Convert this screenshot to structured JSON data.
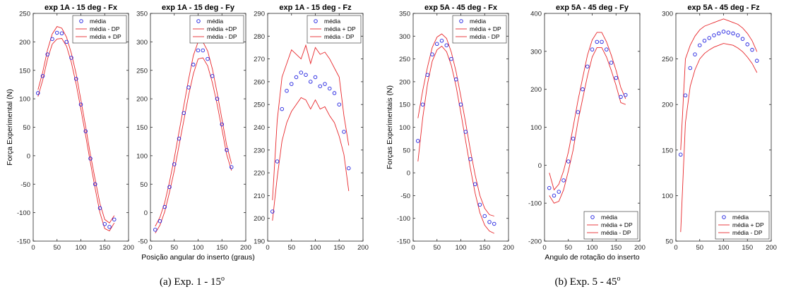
{
  "captions": [
    {
      "label": "(a) Exp. 1 - 15",
      "sup": "o"
    },
    {
      "label": "(b) Exp. 5 - 45",
      "sup": "o"
    }
  ],
  "colors": {
    "marker": "#1f1fe0",
    "line": "#e8272b",
    "axis": "#262626"
  },
  "chart_data": [
    {
      "type": "scatter",
      "title": "exp 1A - 15 deg - Fx",
      "xlabel": "",
      "ylabel": "Força Experimental (N)",
      "xlim": [
        0,
        200
      ],
      "ylim": [
        -150,
        250
      ],
      "xticks": [
        0,
        50,
        100,
        150,
        200
      ],
      "yticks": [
        -150,
        -100,
        -50,
        0,
        50,
        100,
        150,
        200,
        250
      ],
      "legend": {
        "position": "top-right",
        "entries": [
          "média",
          "média - DP",
          "média + DP"
        ]
      },
      "x": [
        10,
        20,
        30,
        40,
        50,
        60,
        70,
        80,
        90,
        100,
        110,
        120,
        130,
        140,
        150,
        160,
        170
      ],
      "series": [
        {
          "name": "média",
          "kind": "markers",
          "values": [
            110,
            140,
            178,
            205,
            216,
            215,
            200,
            172,
            135,
            90,
            43,
            -5,
            -50,
            -92,
            -120,
            -125,
            -112
          ]
        },
        {
          "name": "média - DP",
          "kind": "line",
          "values": [
            104,
            133,
            170,
            196,
            205,
            206,
            192,
            164,
            126,
            82,
            35,
            -12,
            -58,
            -100,
            -128,
            -132,
            -118
          ]
        },
        {
          "name": "média + DP",
          "kind": "line",
          "values": [
            116,
            147,
            186,
            214,
            227,
            224,
            208,
            180,
            144,
            98,
            51,
            2,
            -42,
            -84,
            -112,
            -118,
            -105
          ]
        }
      ]
    },
    {
      "type": "scatter",
      "title": "exp 1A - 15 deg - Fy",
      "xlabel": "Posição angular do inserto (graus)",
      "ylabel": "",
      "xlim": [
        0,
        200
      ],
      "ylim": [
        -50,
        350
      ],
      "xticks": [
        0,
        50,
        100,
        150,
        200
      ],
      "yticks": [
        -50,
        0,
        50,
        100,
        150,
        200,
        250,
        300,
        350
      ],
      "legend": {
        "position": "top-right",
        "entries": [
          "média",
          "média +DP",
          "média - DP"
        ]
      },
      "x": [
        10,
        20,
        30,
        40,
        50,
        60,
        70,
        80,
        90,
        100,
        110,
        120,
        130,
        140,
        150,
        160,
        170
      ],
      "series": [
        {
          "name": "média",
          "kind": "markers",
          "values": [
            -30,
            -15,
            10,
            45,
            85,
            130,
            175,
            220,
            260,
            285,
            285,
            270,
            240,
            200,
            155,
            110,
            80
          ]
        },
        {
          "name": "média +DP",
          "kind": "line",
          "values": [
            -24,
            -8,
            18,
            54,
            96,
            142,
            188,
            234,
            276,
            300,
            300,
            284,
            252,
            210,
            164,
            118,
            86
          ]
        },
        {
          "name": "média - DP",
          "kind": "line",
          "values": [
            -36,
            -22,
            2,
            36,
            74,
            118,
            162,
            206,
            244,
            270,
            272,
            258,
            228,
            190,
            146,
            102,
            74
          ]
        }
      ]
    },
    {
      "type": "scatter",
      "title": "exp 1A - 15 deg - Fz",
      "xlabel": "",
      "ylabel": "",
      "xlim": [
        0,
        200
      ],
      "ylim": [
        190,
        290
      ],
      "xticks": [
        0,
        50,
        100,
        150,
        200
      ],
      "yticks": [
        190,
        200,
        210,
        220,
        230,
        240,
        250,
        260,
        270,
        280,
        290
      ],
      "legend": {
        "position": "top-right",
        "entries": [
          "média",
          "média + DP",
          "média - DP"
        ]
      },
      "x": [
        10,
        20,
        30,
        40,
        50,
        60,
        70,
        80,
        90,
        100,
        110,
        120,
        130,
        140,
        150,
        160,
        170
      ],
      "series": [
        {
          "name": "média",
          "kind": "markers",
          "values": [
            203,
            225,
            248,
            256,
            259,
            262,
            264,
            263,
            260,
            262,
            258,
            259,
            257,
            255,
            250,
            238,
            222
          ]
        },
        {
          "name": "média + DP",
          "kind": "line",
          "values": [
            208,
            243,
            262,
            268,
            274,
            272,
            270,
            276,
            268,
            275,
            272,
            273,
            270,
            266,
            262,
            245,
            232
          ]
        },
        {
          "name": "média - DP",
          "kind": "line",
          "values": [
            199,
            218,
            234,
            242,
            247,
            250,
            253,
            252,
            248,
            252,
            248,
            249,
            245,
            242,
            236,
            228,
            212
          ]
        }
      ]
    },
    {
      "type": "scatter",
      "title": "exp 5A - 45 deg - Fx",
      "xlabel": "",
      "ylabel": "Forças Experimentais (N)",
      "xlim": [
        0,
        200
      ],
      "ylim": [
        -150,
        350
      ],
      "xticks": [
        0,
        50,
        100,
        150,
        200
      ],
      "yticks": [
        -150,
        -100,
        -50,
        0,
        50,
        100,
        150,
        200,
        250,
        300,
        350
      ],
      "legend": {
        "position": "top-right",
        "entries": [
          "média",
          "média + DP",
          "média - DP"
        ]
      },
      "x": [
        10,
        20,
        30,
        40,
        50,
        60,
        70,
        80,
        90,
        100,
        110,
        120,
        130,
        140,
        150,
        160,
        170
      ],
      "series": [
        {
          "name": "média",
          "kind": "markers",
          "values": [
            70,
            150,
            215,
            260,
            283,
            290,
            280,
            250,
            205,
            150,
            90,
            30,
            -25,
            -70,
            -95,
            -108,
            -112
          ]
        },
        {
          "name": "média + DP",
          "kind": "line",
          "values": [
            120,
            180,
            232,
            275,
            298,
            305,
            295,
            265,
            222,
            168,
            110,
            50,
            -5,
            -50,
            -78,
            -92,
            -95
          ]
        },
        {
          "name": "média - DP",
          "kind": "line",
          "values": [
            25,
            120,
            195,
            245,
            270,
            278,
            266,
            236,
            190,
            132,
            70,
            10,
            -45,
            -88,
            -115,
            -128,
            -133
          ]
        }
      ]
    },
    {
      "type": "scatter",
      "title": "exp 5A - 45 deg - Fy",
      "xlabel": "Angulo de rotação do inserto",
      "ylabel": "",
      "xlim": [
        0,
        200
      ],
      "ylim": [
        -200,
        400
      ],
      "xticks": [
        0,
        50,
        100,
        150,
        200
      ],
      "yticks": [
        -200,
        -100,
        0,
        100,
        200,
        300,
        400
      ],
      "legend": {
        "position": "bottom-right",
        "entries": [
          "média",
          "média + DP",
          "média - DP"
        ]
      },
      "x": [
        10,
        20,
        30,
        40,
        50,
        60,
        70,
        80,
        90,
        100,
        110,
        120,
        130,
        140,
        150,
        160,
        170
      ],
      "series": [
        {
          "name": "média",
          "kind": "markers",
          "values": [
            -60,
            -80,
            -70,
            -40,
            10,
            70,
            140,
            200,
            260,
            305,
            325,
            325,
            305,
            270,
            230,
            180,
            185
          ]
        },
        {
          "name": "média + DP",
          "kind": "line",
          "values": [
            -20,
            -65,
            -50,
            -15,
            35,
            100,
            170,
            230,
            290,
            330,
            350,
            350,
            325,
            290,
            250,
            205,
            175
          ]
        },
        {
          "name": "média - DP",
          "kind": "line",
          "values": [
            -80,
            -100,
            -95,
            -65,
            -15,
            40,
            115,
            175,
            235,
            285,
            310,
            310,
            285,
            250,
            210,
            165,
            160
          ]
        }
      ]
    },
    {
      "type": "scatter",
      "title": "exp 5A - 45 deg - Fz",
      "xlabel": "",
      "ylabel": "",
      "xlim": [
        0,
        200
      ],
      "ylim": [
        50,
        300
      ],
      "xticks": [
        0,
        50,
        100,
        150,
        200
      ],
      "yticks": [
        50,
        100,
        150,
        200,
        250,
        300
      ],
      "legend": {
        "position": "bottom-right",
        "entries": [
          "média",
          "média + DP",
          "média - DP"
        ]
      },
      "x": [
        10,
        20,
        30,
        40,
        50,
        60,
        70,
        80,
        90,
        100,
        110,
        120,
        130,
        140,
        150,
        160,
        170
      ],
      "series": [
        {
          "name": "média",
          "kind": "markers",
          "values": [
            145,
            210,
            240,
            255,
            265,
            270,
            273,
            276,
            278,
            280,
            279,
            278,
            276,
            272,
            266,
            260,
            248
          ]
        },
        {
          "name": "média + DP",
          "kind": "line",
          "values": [
            150,
            250,
            265,
            275,
            282,
            286,
            288,
            290,
            292,
            294,
            292,
            290,
            288,
            284,
            278,
            270,
            258
          ]
        },
        {
          "name": "média - DP",
          "kind": "line",
          "values": [
            60,
            180,
            220,
            238,
            250,
            256,
            260,
            263,
            265,
            267,
            266,
            265,
            262,
            258,
            252,
            245,
            235
          ]
        }
      ]
    }
  ]
}
